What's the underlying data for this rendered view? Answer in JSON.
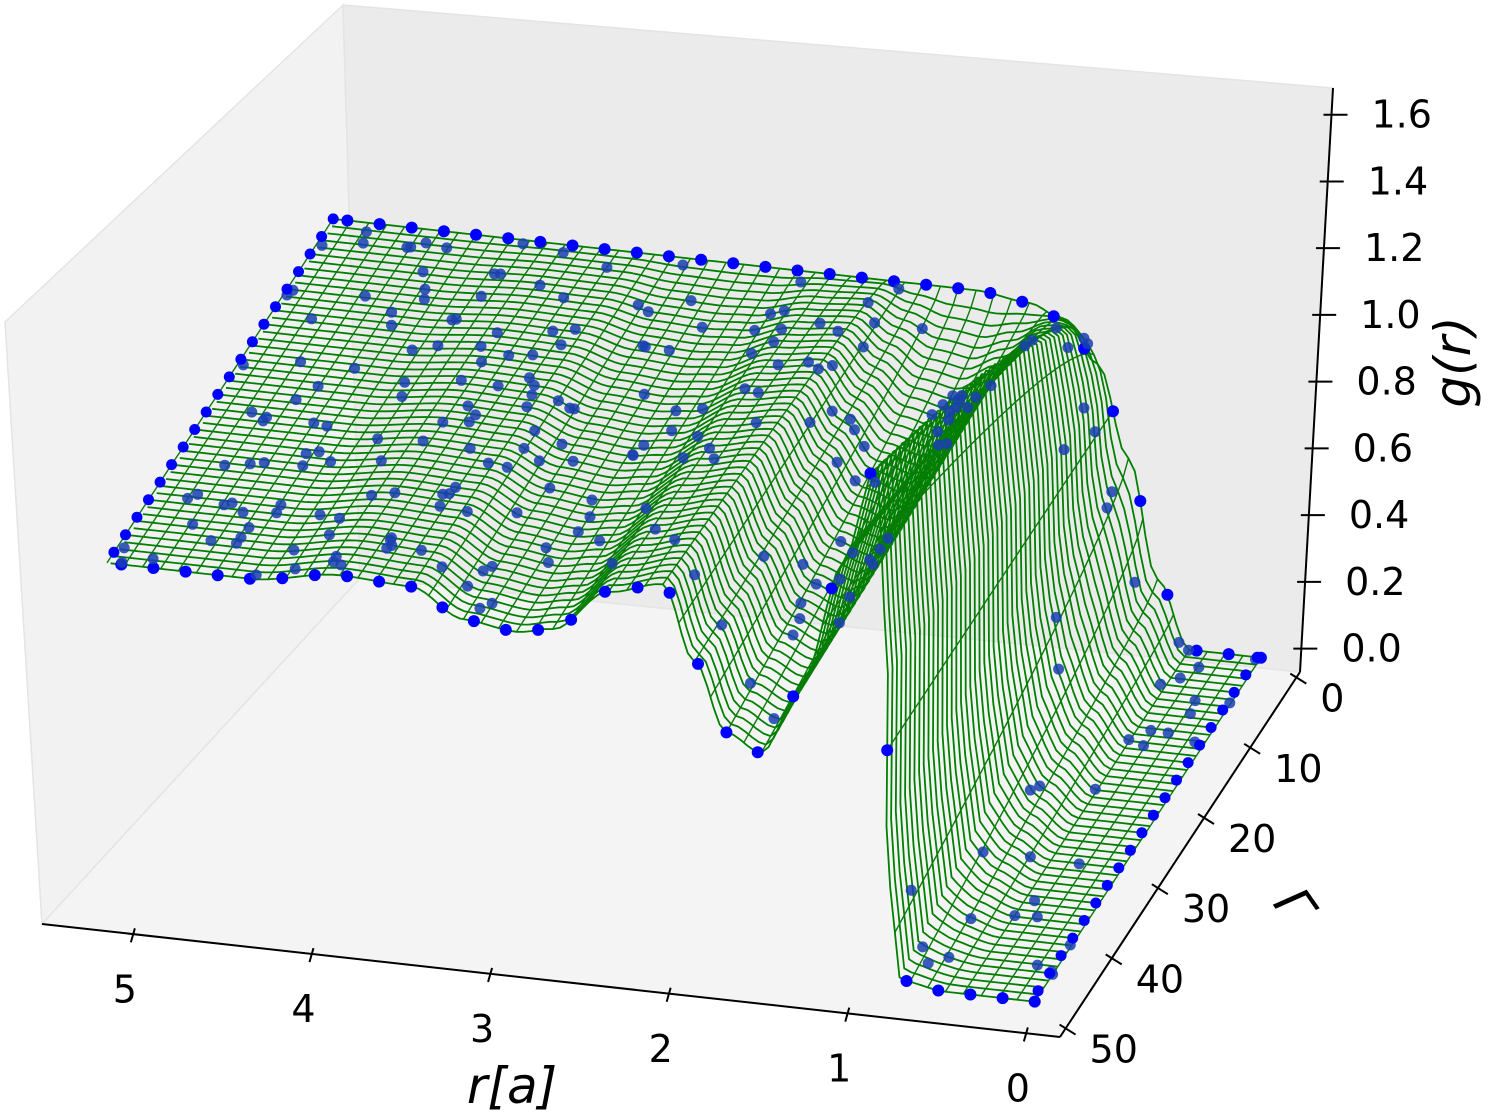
{
  "chart_data": {
    "type": "surface3d",
    "xlabel": "r[a]",
    "ylabel": "Γ",
    "zlabel": "g(r)",
    "x_ticks": [
      "0",
      "1",
      "2",
      "3",
      "4",
      "5"
    ],
    "y_ticks": [
      "0",
      "10",
      "20",
      "30",
      "40",
      "50"
    ],
    "z_ticks": [
      "0.0",
      "0.2",
      "0.4",
      "0.6",
      "0.8",
      "1.0",
      "1.2",
      "1.4",
      "1.6"
    ],
    "xlim": [
      0,
      5.3
    ],
    "ylim": [
      0,
      52
    ],
    "zlim": [
      0,
      1.65
    ],
    "grid": false,
    "series": [
      {
        "kind": "wireframe",
        "color": "#008000"
      },
      {
        "kind": "scatter",
        "color": "#0000ff"
      }
    ],
    "profile_low_gamma": {
      "r": [
        0,
        0.4,
        0.6,
        0.8,
        1.0,
        1.2,
        1.4,
        1.7,
        2.0,
        2.5,
        3.0,
        3.5,
        4.0,
        4.5,
        5.0,
        5.3
      ],
      "g": [
        0.0,
        0.0,
        0.2,
        0.55,
        0.82,
        0.94,
        0.98,
        1.0,
        1.0,
        1.0,
        1.0,
        1.0,
        1.0,
        1.0,
        1.0,
        1.0
      ]
    },
    "profile_high_gamma": {
      "r": [
        0,
        0.5,
        0.75,
        0.85,
        0.95,
        1.05,
        1.2,
        1.4,
        1.6,
        1.8,
        2.0,
        2.2,
        2.5,
        2.8,
        3.0,
        3.3,
        3.6,
        4.0,
        4.5,
        5.0,
        5.3
      ],
      "g": [
        0.0,
        0.0,
        0.02,
        0.3,
        1.1,
        1.55,
        1.25,
        0.85,
        0.65,
        0.7,
        0.9,
        1.12,
        1.08,
        0.95,
        0.93,
        0.95,
        1.03,
        1.04,
        1.0,
        1.0,
        1.0
      ]
    }
  }
}
